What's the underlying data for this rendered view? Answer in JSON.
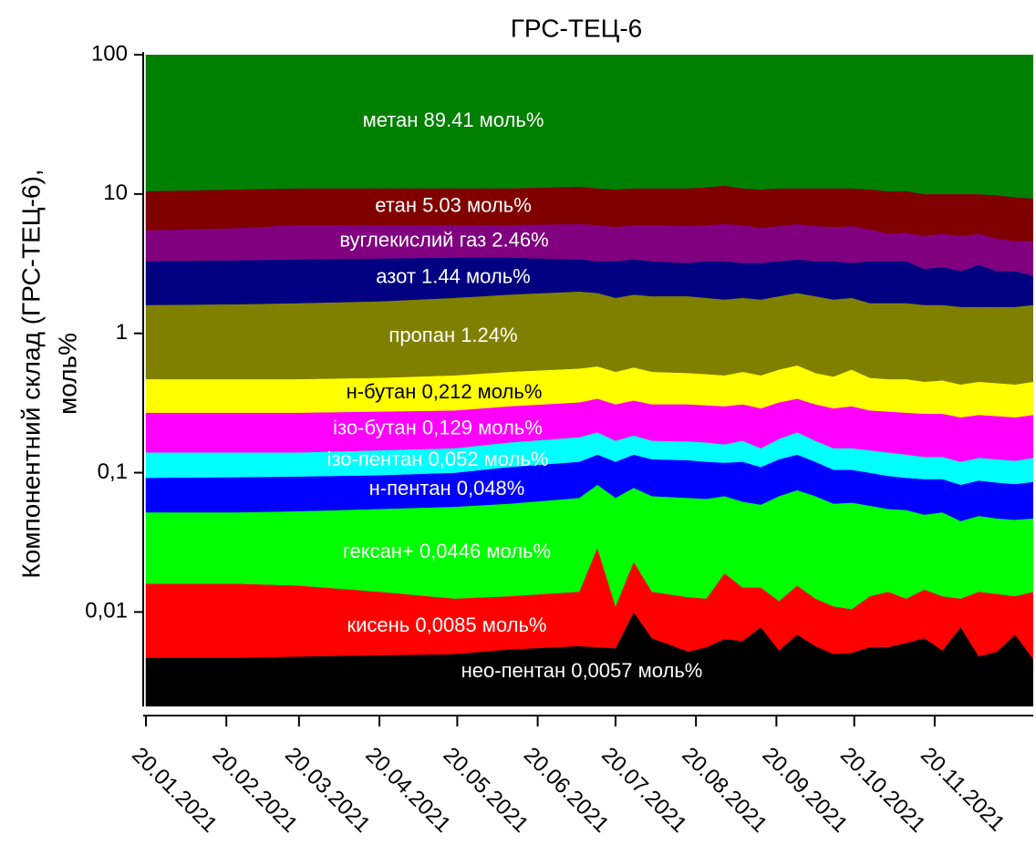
{
  "chart_data": {
    "type": "stacked_area",
    "title": "ГРС-ТЕЦ-6",
    "ylabel": [
      "Компонентний склад (ГРС-ТЕЦ-6),",
      "моль%"
    ],
    "log_y": true,
    "ylim": [
      0.0021,
      100
    ],
    "yticks": [
      {
        "value": 0.01,
        "label": "0,01"
      },
      {
        "value": 0.1,
        "label": "0,1"
      },
      1,
      10,
      100
    ],
    "xlim": [
      "20.01.2021",
      "28.12.2021"
    ],
    "xticks": [
      "20.01.2021",
      "20.02.2021",
      "20.03.2021",
      "20.04.2021",
      "20.05.2021",
      "20.06.2021",
      "20.07.2021",
      "20.08.2021",
      "20.09.2021",
      "20.10.2021",
      "20.11.2021"
    ],
    "x": [
      "20.01.2021",
      "24.02.2021",
      "20.03.2021",
      "20.04.2021",
      "19.05.2021",
      "09.06.2021",
      "06.07.2021",
      "13.07.2021",
      "20.07.2021",
      "27.07.2021",
      "03.08.2021",
      "17.08.2021",
      "24.08.2021",
      "31.08.2021",
      "07.09.2021",
      "14.09.2021",
      "21.09.2021",
      "28.09.2021",
      "05.10.2021",
      "12.10.2021",
      "19.10.2021",
      "26.10.2021",
      "02.11.2021",
      "09.11.2021",
      "16.11.2021",
      "23.11.2021",
      "30.11.2021",
      "07.12.2021",
      "14.12.2021",
      "21.12.2021",
      "28.12.2021"
    ],
    "series": [
      {
        "color": "#000000",
        "label": "нео-пентан 0,0057 моль%",
        "label_color": "#ffffff",
        "values": [
          0.0047,
          0.0047,
          0.0048,
          0.0049,
          0.005,
          0.0054,
          0.0057,
          0.0056,
          0.0055,
          0.01,
          0.0065,
          0.0052,
          0.0056,
          0.0064,
          0.0062,
          0.0078,
          0.0053,
          0.0069,
          0.0057,
          0.005,
          0.0051,
          0.0056,
          0.0056,
          0.006,
          0.0065,
          0.0053,
          0.0078,
          0.0048,
          0.0052,
          0.0069,
          0.0046
        ]
      },
      {
        "color": "#ff0000",
        "label": "кисень 0,0085 моль%",
        "label_color": "#ffffff",
        "values": [
          0.0113,
          0.0113,
          0.0107,
          0.0091,
          0.0075,
          0.0076,
          0.0083,
          0.0234,
          0.0055,
          0.013,
          0.0075,
          0.0076,
          0.0069,
          0.0126,
          0.0088,
          0.0072,
          0.0067,
          0.0086,
          0.0068,
          0.006,
          0.0054,
          0.0074,
          0.0084,
          0.0065,
          0.008,
          0.0077,
          0.0047,
          0.0092,
          0.0083,
          0.0061,
          0.0094
        ]
      },
      {
        "color": "#00ff00",
        "label": "гексан+ 0,0446 моль%",
        "label_color": "#ffffff",
        "values": [
          0.036,
          0.036,
          0.0375,
          0.041,
          0.0445,
          0.047,
          0.052,
          0.053,
          0.055,
          0.055,
          0.054,
          0.0532,
          0.0525,
          0.049,
          0.047,
          0.044,
          0.056,
          0.0595,
          0.0555,
          0.049,
          0.0505,
          0.045,
          0.041,
          0.0415,
          0.0355,
          0.039,
          0.0325,
          0.035,
          0.0335,
          0.033,
          0.033
        ]
      },
      {
        "color": "#0000ff",
        "label": "н-пентан 0,048%",
        "label_color": "#ffffff",
        "values": [
          0.04,
          0.041,
          0.041,
          0.041,
          0.043,
          0.05,
          0.054,
          0.053,
          0.054,
          0.057,
          0.057,
          0.057,
          0.055,
          0.05,
          0.058,
          0.051,
          0.057,
          0.06,
          0.052,
          0.045,
          0.044,
          0.042,
          0.04,
          0.038,
          0.04,
          0.038,
          0.037,
          0.039,
          0.038,
          0.037,
          0.039
        ]
      },
      {
        "color": "#00ffff",
        "label": "ізо-пентан 0,052 моль%",
        "label_color": "#ffffff",
        "values": [
          0.048,
          0.047,
          0.046,
          0.049,
          0.05,
          0.055,
          0.06,
          0.06,
          0.05,
          0.05,
          0.045,
          0.045,
          0.045,
          0.042,
          0.05,
          0.04,
          0.05,
          0.06,
          0.05,
          0.045,
          0.045,
          0.045,
          0.045,
          0.043,
          0.04,
          0.04,
          0.038,
          0.04,
          0.04,
          0.039,
          0.042
        ]
      },
      {
        "color": "#ff00ff",
        "label": "ізо-бутан 0,129 моль%",
        "label_color": "#ffffff",
        "values": [
          0.13,
          0.13,
          0.13,
          0.13,
          0.13,
          0.135,
          0.14,
          0.145,
          0.14,
          0.145,
          0.14,
          0.142,
          0.14,
          0.14,
          0.14,
          0.14,
          0.145,
          0.145,
          0.14,
          0.14,
          0.15,
          0.135,
          0.135,
          0.135,
          0.135,
          0.135,
          0.13,
          0.132,
          0.13,
          0.128,
          0.132
        ]
      },
      {
        "color": "#ffff00",
        "label": "н-бутан 0,212 моль%",
        "label_color": "#000000",
        "values": [
          0.2,
          0.2,
          0.2,
          0.205,
          0.22,
          0.23,
          0.24,
          0.24,
          0.22,
          0.24,
          0.22,
          0.21,
          0.205,
          0.2,
          0.22,
          0.21,
          0.23,
          0.25,
          0.21,
          0.2,
          0.25,
          0.2,
          0.195,
          0.2,
          0.185,
          0.195,
          0.18,
          0.19,
          0.185,
          0.18,
          0.19
        ]
      },
      {
        "color": "#808000",
        "label": "пропан 1.24%",
        "label_color": "#ffffff",
        "values": [
          1.13,
          1.15,
          1.18,
          1.22,
          1.3,
          1.37,
          1.44,
          1.37,
          1.27,
          1.33,
          1.32,
          1.33,
          1.29,
          1.25,
          1.27,
          1.25,
          1.3,
          1.36,
          1.33,
          1.26,
          1.25,
          1.17,
          1.18,
          1.18,
          1.15,
          1.14,
          1.12,
          1.1,
          1.11,
          1.12,
          1.15
        ]
      },
      {
        "color": "#000080",
        "label": "азот 1.44 моль%",
        "label_color": "#ffffff",
        "values": [
          1.7,
          1.73,
          1.75,
          1.75,
          1.7,
          1.6,
          1.4,
          1.35,
          1.5,
          1.5,
          1.45,
          1.35,
          1.5,
          1.55,
          1.4,
          1.45,
          1.45,
          1.45,
          1.45,
          1.55,
          1.4,
          1.65,
          1.65,
          1.65,
          1.3,
          1.4,
          1.25,
          1.55,
          1.25,
          1.25,
          1.0
        ]
      },
      {
        "color": "#800080",
        "label": "вуглекислий газ 2.46%",
        "label_color": "#ffffff",
        "values": [
          2.2,
          2.35,
          2.6,
          2.55,
          2.5,
          2.5,
          2.7,
          2.7,
          2.5,
          2.6,
          2.7,
          2.7,
          2.7,
          2.8,
          2.8,
          2.5,
          2.6,
          2.7,
          2.6,
          2.5,
          2.7,
          2.3,
          1.9,
          2.0,
          2.1,
          2.2,
          2.2,
          2.1,
          2.0,
          1.8,
          2.0
        ]
      },
      {
        "color": "#800000",
        "label": "етан 5.03 моль%",
        "label_color": "#ffffff",
        "values": [
          5.0,
          5.1,
          5.0,
          5.0,
          5.0,
          5.0,
          5.2,
          5.0,
          5.0,
          5.0,
          5.0,
          5.1,
          5.2,
          5.4,
          5.0,
          5.1,
          5.1,
          4.9,
          5.1,
          5.2,
          5.1,
          5.2,
          5.3,
          5.2,
          5.0,
          4.8,
          5.0,
          4.8,
          5.0,
          4.9,
          4.7
        ]
      },
      {
        "color": "#008000",
        "label": "метан 89.41 моль%",
        "label_color": "#ffffff",
        "values": [
          89.5,
          89.2,
          89,
          89,
          89,
          89,
          88.7,
          89,
          89.2,
          89,
          89,
          89,
          88.8,
          88.5,
          89,
          89.2,
          89,
          89,
          89,
          89,
          89,
          89.2,
          89.5,
          89.5,
          90,
          90,
          90,
          90,
          90.2,
          90.5,
          90.7
        ]
      }
    ]
  }
}
